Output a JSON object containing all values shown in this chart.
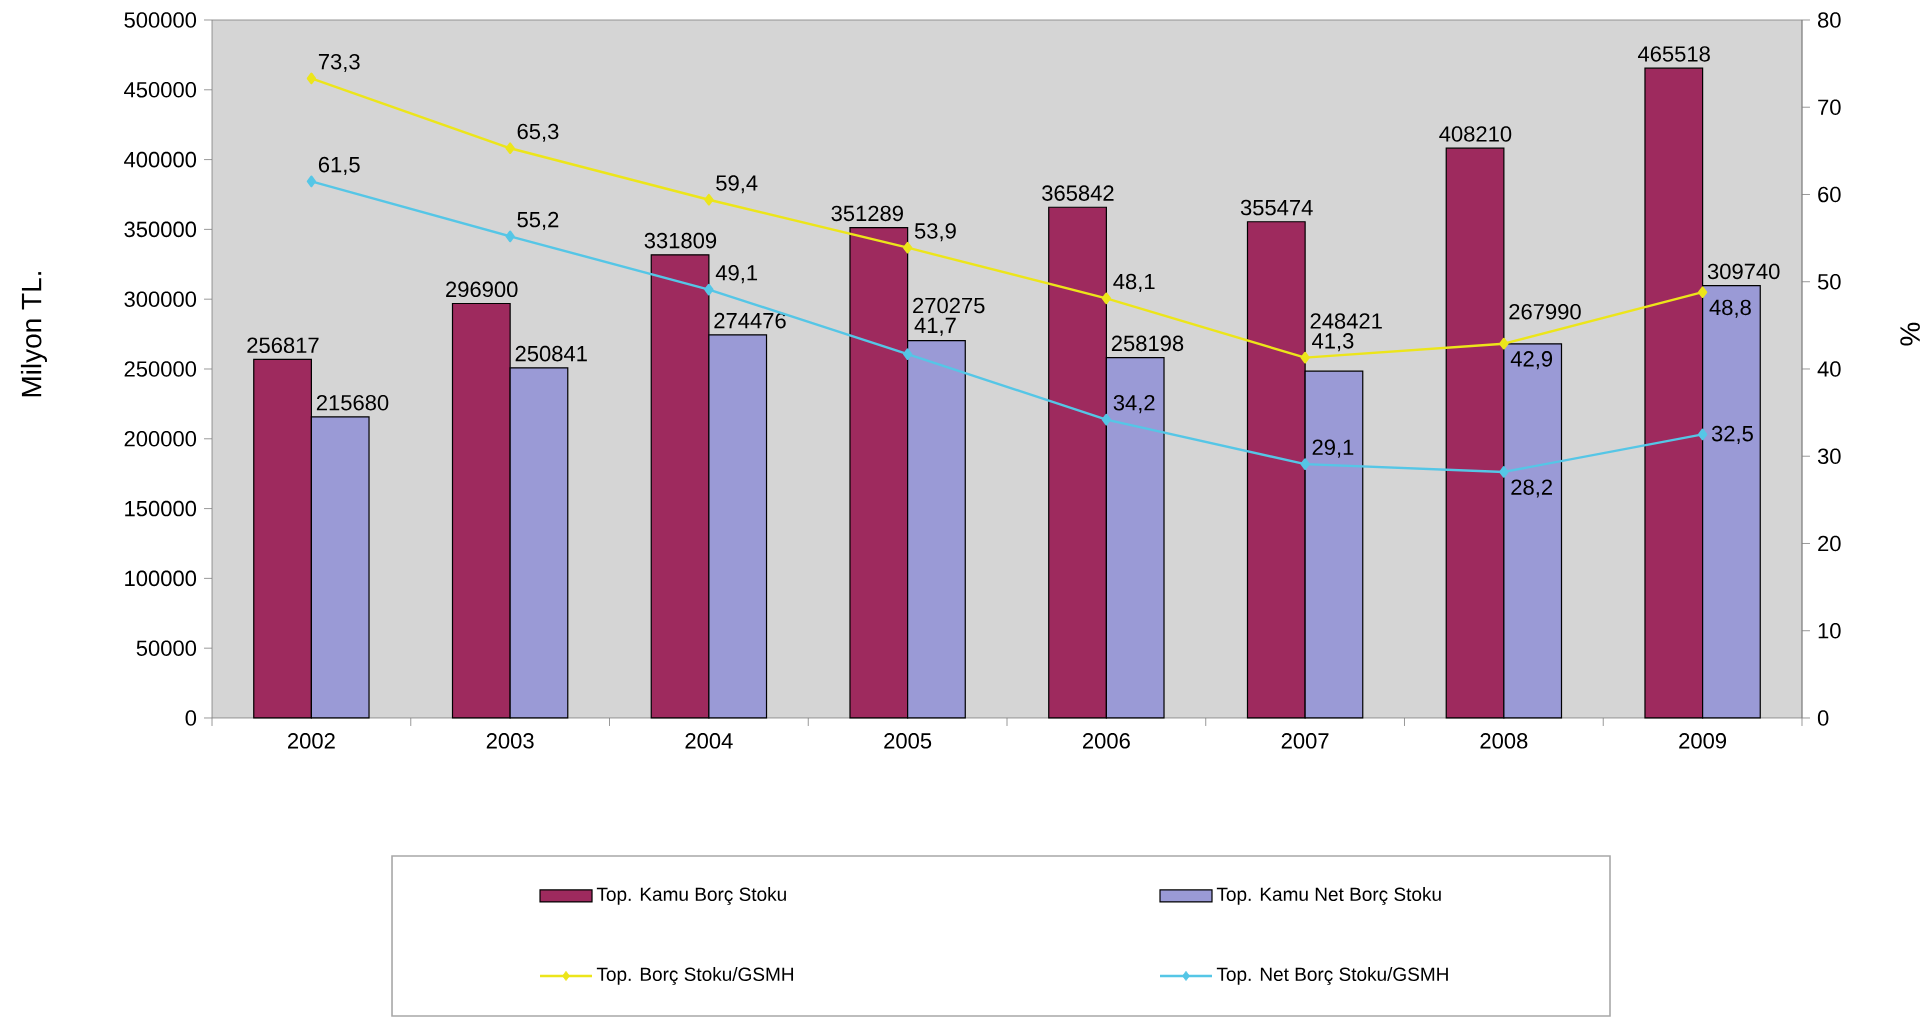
{
  "chart_data": {
    "type": "bar",
    "categories": [
      "2002",
      "2003",
      "2004",
      "2005",
      "2006",
      "2007",
      "2008",
      "2009"
    ],
    "ylabel": "Milyon TL.",
    "y2label": "%",
    "ylim": [
      0,
      500000
    ],
    "yticks": [
      0,
      50000,
      100000,
      150000,
      200000,
      250000,
      300000,
      350000,
      400000,
      450000,
      500000
    ],
    "y2lim": [
      0,
      80
    ],
    "y2ticks": [
      0,
      10,
      20,
      30,
      40,
      50,
      60,
      70,
      80
    ],
    "legend": "bottom",
    "series": [
      {
        "name": "Top. Kamu Borç Stoku",
        "color": "#9e2a5e",
        "values": [
          256817,
          296900,
          331809,
          351289,
          365842,
          355474,
          408210,
          465518
        ],
        "value_labels": [
          "256817",
          "296900",
          "331809",
          "351289",
          "365842",
          "355474",
          "408210",
          "465518"
        ]
      },
      {
        "name": "Top. Kamu Net Borç Stoku",
        "color": "#9a9ad6",
        "values": [
          215680,
          250841,
          274476,
          270275,
          258198,
          248421,
          267990,
          309740
        ],
        "value_labels": [
          "215680",
          "250841",
          "274476",
          "270275",
          "258198",
          "248421",
          "267990",
          "309740"
        ]
      },
      {
        "name": "Top. Borç Stoku/GSMH",
        "type": "line",
        "axis": "y2",
        "marker": "diamond",
        "color": "#ece51a",
        "values": [
          73.3,
          65.3,
          59.4,
          53.9,
          48.1,
          41.3,
          42.9,
          48.8
        ],
        "value_labels": [
          "73,3",
          "65,3",
          "59,4",
          "53,9",
          "48,1",
          "41,3",
          "42,9",
          "48,8"
        ]
      },
      {
        "name": "Top. Net Borç Stoku/GSMH",
        "type": "line",
        "axis": "y2",
        "marker": "diamond",
        "color": "#55c6e6",
        "values": [
          61.5,
          55.2,
          49.1,
          41.7,
          34.2,
          29.1,
          28.2,
          32.5
        ],
        "value_labels": [
          "61,5",
          "55,2",
          "49,1",
          "41,7",
          "34,2",
          "29,1",
          "28,2",
          "32,5"
        ]
      }
    ]
  }
}
